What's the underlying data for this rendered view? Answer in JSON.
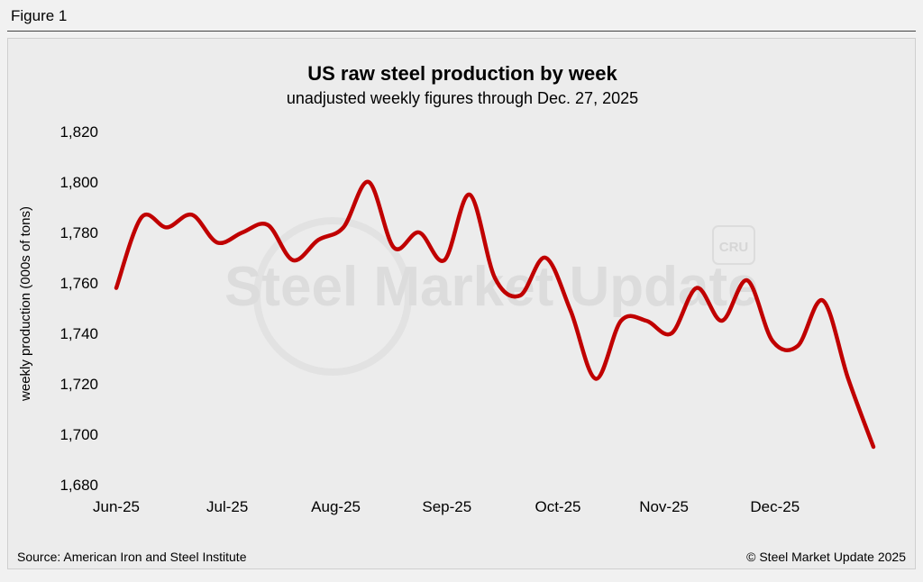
{
  "figure_label": "Figure 1",
  "source": "Source: American Iron and Steel Institute",
  "copyright": "© Steel Market Update 2025",
  "watermark": {
    "brand": "Steel Market Update",
    "badge": "CRU"
  },
  "colors": {
    "line": "#c00000",
    "background": "#ececec",
    "watermark": "#dcdcdc"
  },
  "chart_data": {
    "type": "line",
    "title": "US raw steel production by week",
    "subtitle": "unadjusted weekly figures through Dec. 27, 2025",
    "ylabel": "weekly production (000s of tons)",
    "xlabel": "",
    "ylim": [
      1680,
      1820
    ],
    "yticks": [
      1680,
      1700,
      1720,
      1740,
      1760,
      1780,
      1800,
      1820
    ],
    "ytick_labels": [
      "1,680",
      "1,700",
      "1,720",
      "1,740",
      "1,760",
      "1,780",
      "1,800",
      "1,820"
    ],
    "x_tick_labels": [
      "Jun-25",
      "Jul-25",
      "Aug-25",
      "Sep-25",
      "Oct-25",
      "Nov-25",
      "Dec-25"
    ],
    "x_tick_weeks": [
      0,
      4.4,
      8.7,
      13.1,
      17.5,
      21.7,
      26.1
    ],
    "grid": false,
    "series": [
      {
        "name": "weekly production",
        "values": [
          1758,
          1786,
          1782,
          1787,
          1776,
          1780,
          1783,
          1769,
          1777,
          1782,
          1800,
          1774,
          1780,
          1769,
          1795,
          1762,
          1755,
          1770,
          1749,
          1722,
          1745,
          1745,
          1740,
          1758,
          1745,
          1761,
          1737,
          1735,
          1753,
          1722,
          1695
        ]
      }
    ]
  }
}
